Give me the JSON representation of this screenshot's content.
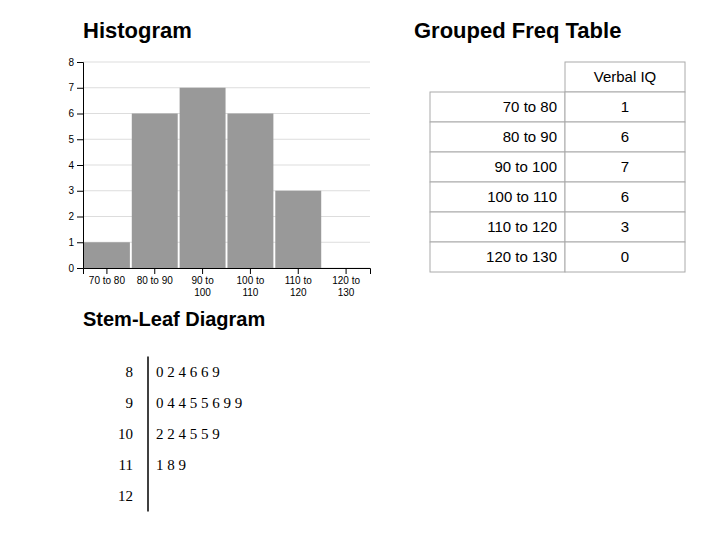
{
  "chart_data": [
    {
      "type": "bar",
      "title": "Histogram",
      "categories": [
        "70 to 80",
        "80 to 90",
        "90 to\n100",
        "100 to\n110",
        "110 to\n120",
        "120 to\n130"
      ],
      "values": [
        1,
        6,
        7,
        6,
        3,
        0
      ],
      "color": "#999999",
      "ylim": [
        0,
        8
      ],
      "yticks": [
        0,
        1,
        2,
        3,
        4,
        5,
        6,
        7,
        8
      ],
      "grid": true
    },
    {
      "type": "stem_leaf",
      "title": "Stem-Leaf Diagram",
      "stems": [
        8,
        9,
        10,
        11,
        12
      ],
      "leaves": [
        "0 2 4 6 6 9",
        "0 4 4 5 5 6 9 9",
        "2 2 4 5 5 9",
        "1 8 9",
        null
      ]
    },
    {
      "type": "table",
      "title": "Grouped Freq Table",
      "column_header": "Verbal IQ",
      "categories": [
        "70 to 80",
        "80 to 90",
        "90 to 100",
        "100 to 110",
        "110 to 120",
        "120 to 130"
      ],
      "values": [
        1,
        6,
        7,
        6,
        3,
        0
      ]
    }
  ]
}
